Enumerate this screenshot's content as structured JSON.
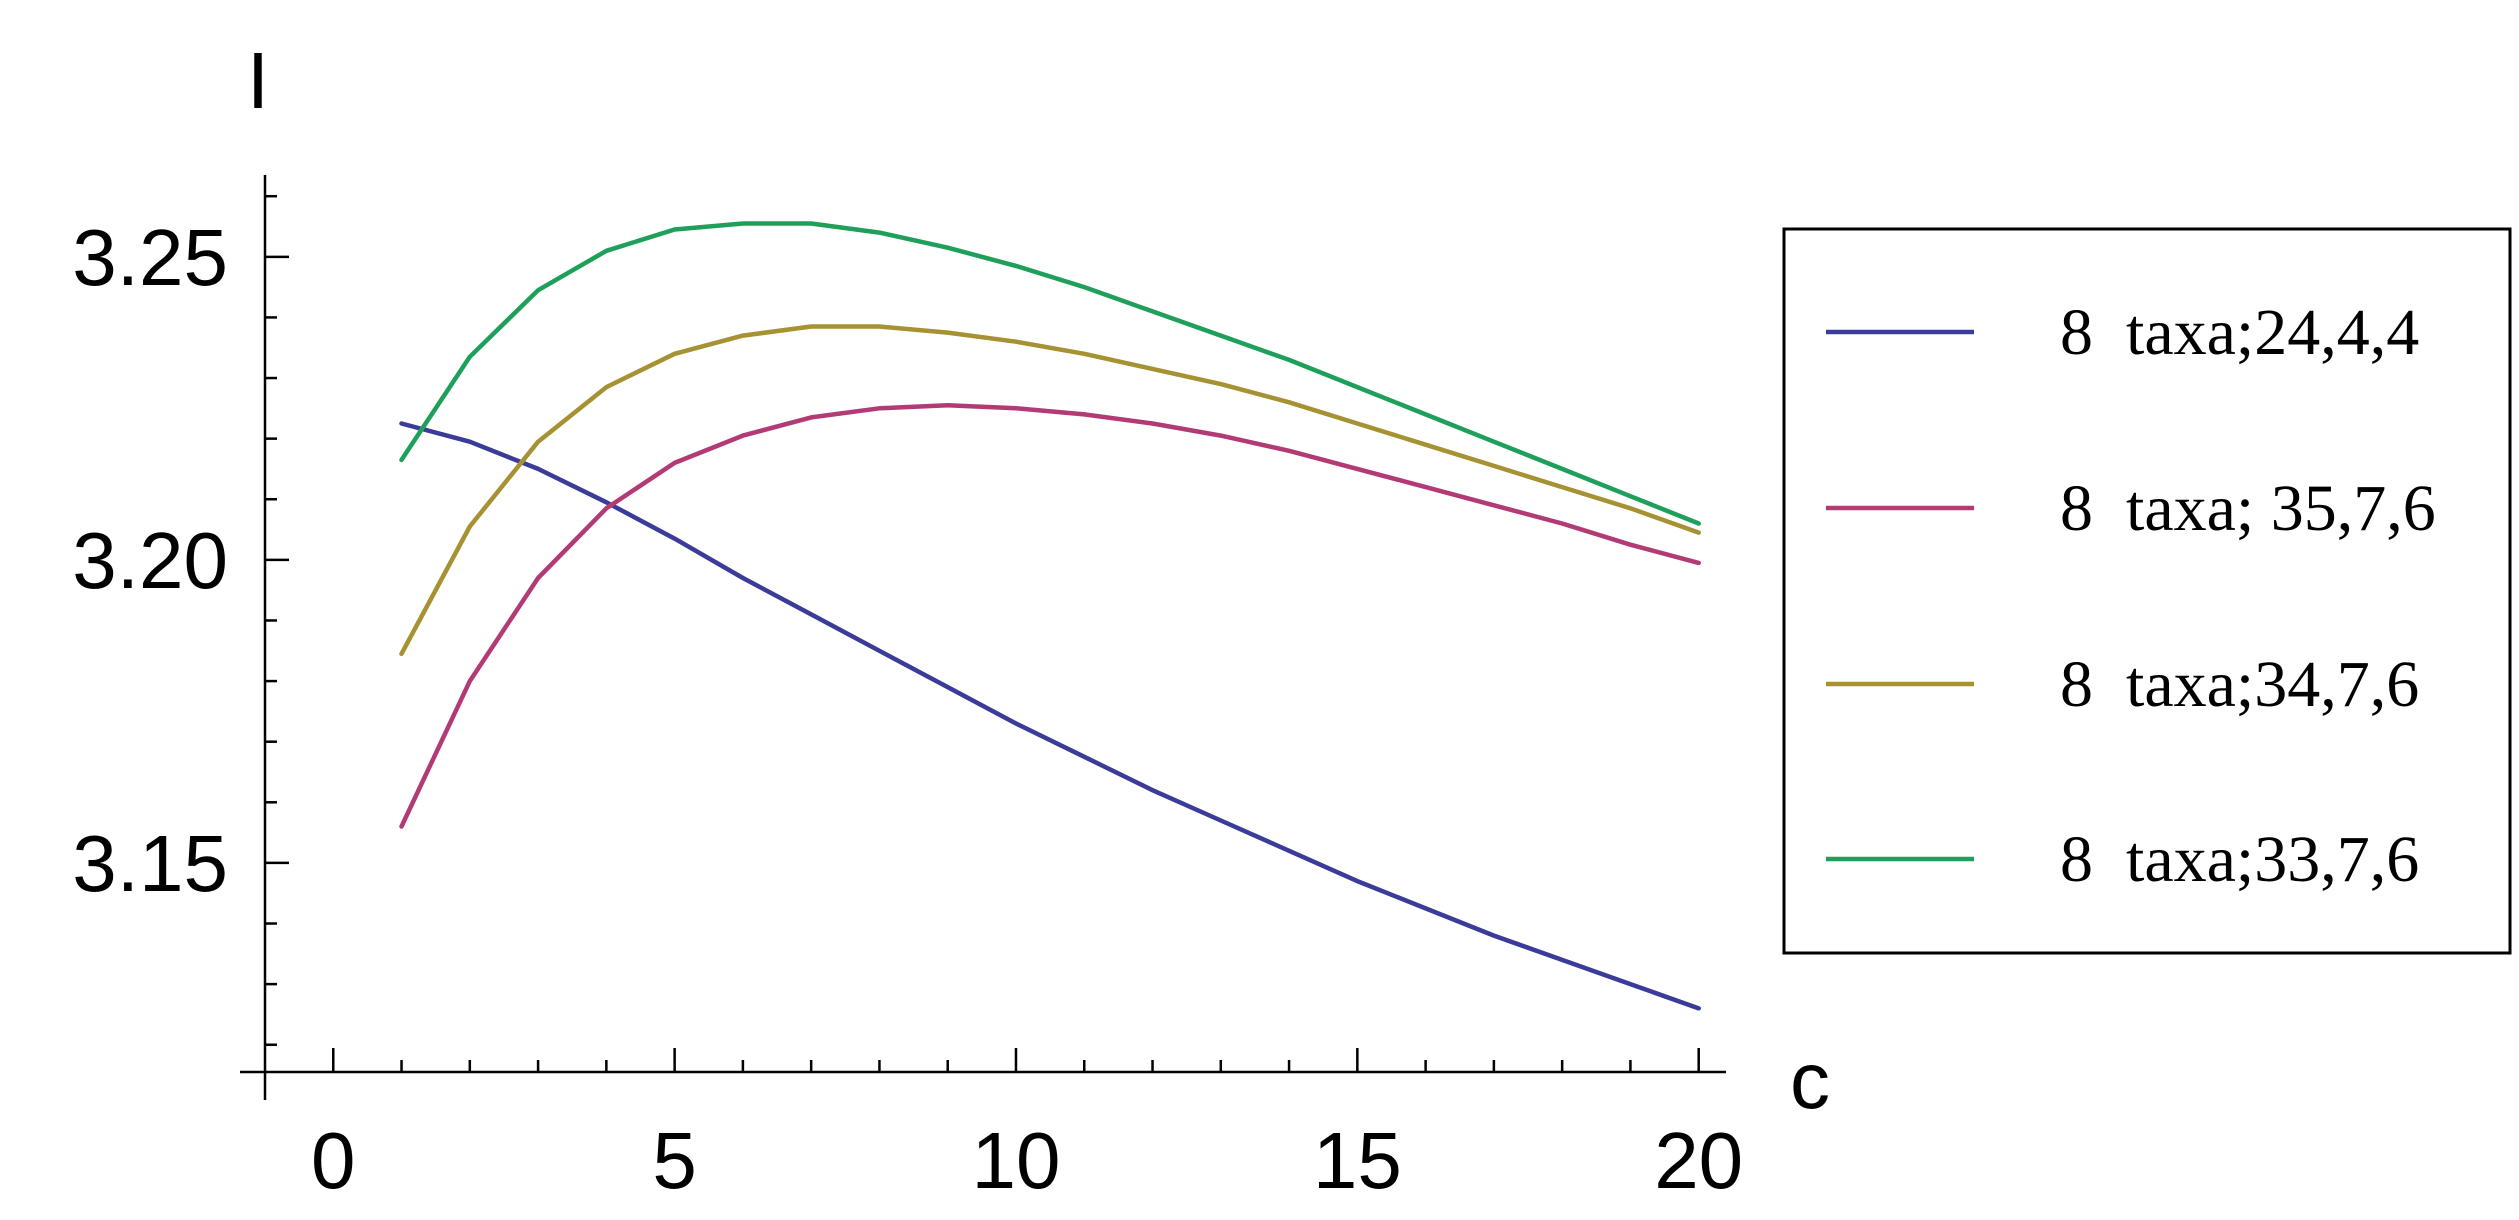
{
  "chart_data": {
    "type": "line",
    "title": "",
    "xlabel": "c",
    "ylabel": "I",
    "xlim": [
      -1,
      20.4
    ],
    "ylim": [
      3.1155,
      3.2635
    ],
    "x_ticks": [
      0,
      5,
      10,
      15,
      20
    ],
    "x_tick_labels": [
      "0",
      "5",
      "10",
      "15",
      "20"
    ],
    "y_ticks": [
      3.15,
      3.2,
      3.25
    ],
    "y_tick_labels": [
      "3.15",
      "3.20",
      "3.25"
    ],
    "grid": false,
    "legend_position": "right",
    "x": [
      1,
      2,
      3,
      4,
      5,
      6,
      7,
      8,
      9,
      10,
      11,
      12,
      13,
      14,
      15,
      16,
      17,
      18,
      19,
      20
    ],
    "series": [
      {
        "name": "8  taxa;24,4,4",
        "color": "#3b3b9a",
        "values": [
          3.2225,
          3.2195,
          3.215,
          3.2095,
          3.2035,
          3.197,
          3.191,
          3.185,
          3.179,
          3.173,
          3.1675,
          3.162,
          3.157,
          3.152,
          3.147,
          3.1425,
          3.138,
          3.134,
          3.13,
          3.126
        ]
      },
      {
        "name": "8  taxa; 35,7,6",
        "color": "#b23a75",
        "values": [
          3.156,
          3.18,
          3.197,
          3.2085,
          3.216,
          3.2205,
          3.2235,
          3.225,
          3.2255,
          3.225,
          3.224,
          3.2225,
          3.2205,
          3.218,
          3.215,
          3.212,
          3.209,
          3.206,
          3.2025,
          3.1995
        ]
      },
      {
        "name": "8  taxa;34,7,6",
        "color": "#a69232",
        "values": [
          3.1845,
          3.2055,
          3.2195,
          3.2285,
          3.234,
          3.237,
          3.2385,
          3.2385,
          3.2375,
          3.236,
          3.234,
          3.2315,
          3.229,
          3.226,
          3.2225,
          3.219,
          3.2155,
          3.212,
          3.2085,
          3.2045
        ]
      },
      {
        "name": "8  taxa;33,7,6",
        "color": "#1fa05a",
        "values": [
          3.2165,
          3.2335,
          3.2445,
          3.251,
          3.2545,
          3.2555,
          3.2555,
          3.254,
          3.2515,
          3.2485,
          3.245,
          3.241,
          3.237,
          3.233,
          3.2285,
          3.224,
          3.2195,
          3.215,
          3.2105,
          3.206
        ]
      }
    ]
  }
}
